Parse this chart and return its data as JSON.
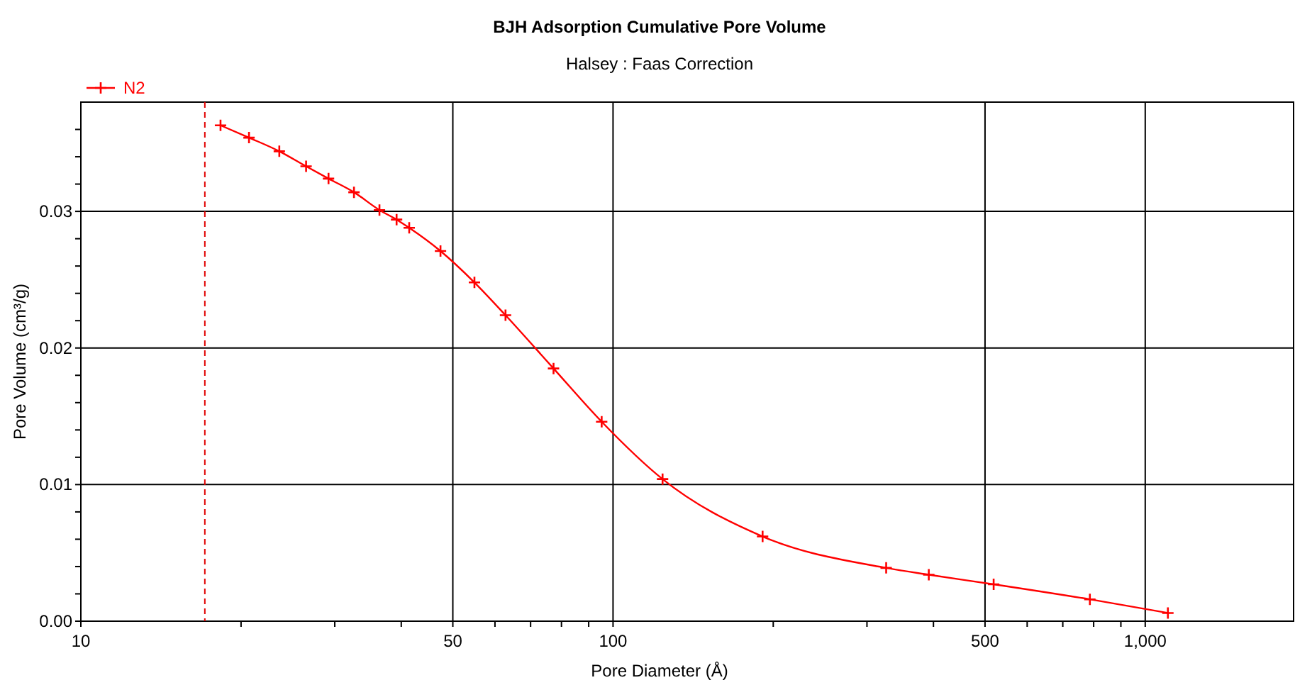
{
  "chart_data": {
    "type": "line",
    "title": "BJH Adsorption Cumulative Pore Volume",
    "subtitle": "Halsey : Faas Correction",
    "xlabel": "Pore Diameter (Å)",
    "ylabel": "Pore Volume (cm³/g)",
    "log": "x",
    "xlim": [
      10,
      1900
    ],
    "xticks": [
      10,
      {
        "value": 20,
        "label": null
      },
      {
        "value": 30,
        "label": null
      },
      {
        "value": 40,
        "label": null
      },
      50,
      {
        "value": 60,
        "label": null
      },
      {
        "value": 70,
        "label": null
      },
      {
        "value": 80,
        "label": null
      },
      {
        "value": 90,
        "label": null
      },
      100,
      {
        "value": 200,
        "label": null
      },
      {
        "value": 300,
        "label": null
      },
      {
        "value": 400,
        "label": null
      },
      500,
      {
        "value": 600,
        "label": null
      },
      {
        "value": 700,
        "label": null
      },
      {
        "value": 800,
        "label": null
      },
      {
        "value": 900,
        "label": null
      },
      {
        "value": 1000,
        "label": "1,000"
      }
    ],
    "ylim": [
      0,
      0.038
    ],
    "yticks": [
      {
        "value": 0,
        "label": "0.00"
      },
      {
        "value": 0.002,
        "label": null
      },
      {
        "value": 0.004,
        "label": null
      },
      {
        "value": 0.006,
        "label": null
      },
      {
        "value": 0.008,
        "label": null
      },
      0.01,
      {
        "value": 0.012,
        "label": null
      },
      {
        "value": 0.014,
        "label": null
      },
      {
        "value": 0.016,
        "label": null
      },
      {
        "value": 0.018,
        "label": null
      },
      0.02,
      {
        "value": 0.022,
        "label": null
      },
      {
        "value": 0.024,
        "label": null
      },
      {
        "value": 0.026,
        "label": null
      },
      {
        "value": 0.028,
        "label": null
      },
      0.03,
      {
        "value": 0.032,
        "label": null
      },
      {
        "value": 0.034,
        "label": null
      },
      {
        "value": 0.036,
        "label": null
      }
    ],
    "grid": true,
    "legend": "top left",
    "marker": "cross",
    "line_style": "solid",
    "ref_lines": [
      {
        "axis": "x",
        "value": 17.1,
        "color": "#e00000",
        "line_style": "dashed"
      }
    ],
    "series": [
      {
        "name": "N2",
        "color": "#ff0000",
        "x": [
          18.3,
          20.7,
          23.6,
          26.5,
          29.2,
          32.6,
          36.4,
          39.2,
          41.4,
          47.4,
          54.9,
          62.8,
          77.3,
          95.2,
          123.9,
          191,
          326,
          392,
          519,
          787,
          1103
        ],
        "values": [
          0.0363,
          0.0354,
          0.0344,
          0.0333,
          0.0324,
          0.0314,
          0.0301,
          0.0294,
          0.0288,
          0.0271,
          0.0248,
          0.0224,
          0.0185,
          0.0146,
          0.0104,
          0.0062,
          0.0039,
          0.0034,
          0.0027,
          0.0016,
          0.0006
        ]
      }
    ]
  }
}
